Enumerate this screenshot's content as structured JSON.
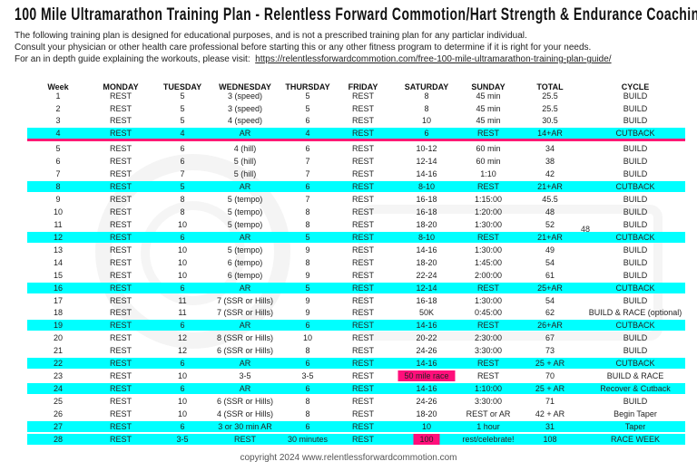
{
  "title": "100 Mile Ultramarathon Training Plan - Relentless Forward Commotion/Hart Strength & Endurance Coaching",
  "intro": {
    "line1": "The following training plan is designed for educational purposes, and is not a prescribed training plan for any particlar individual.",
    "line2": "Consult your physician or other health care professional before starting this or any other fitness program to determine if it is right for your needs.",
    "line3_prefix": "For an in depth guide explaining the workouts, please visit:",
    "link": "https://relentlessforwardcommotion.com/free-100-mile-ultramarathon-training-plan-guide/"
  },
  "watermarks": [
    "Heather Hart Coaching for Health & Life",
    "Relentless Forward Commotion"
  ],
  "colors": {
    "cutback_row": "#00ffff",
    "race_cell": "#ff0f7b",
    "divider": "#ff1a75"
  },
  "table": {
    "headers": [
      "Week",
      "MONDAY",
      "TUESDAY",
      "WEDNESDAY",
      "THURSDAY",
      "FRIDAY",
      "SATURDAY",
      "SUNDAY",
      "TOTAL",
      "CYCLE"
    ],
    "rows": [
      {
        "cells": [
          "1",
          "REST",
          "5",
          "3 (speed)",
          "5",
          "REST",
          "8",
          "45 min",
          "25.5",
          "BUILD"
        ]
      },
      {
        "cells": [
          "2",
          "REST",
          "5",
          "3 (speed)",
          "5",
          "REST",
          "8",
          "45 min",
          "25.5",
          "BUILD"
        ]
      },
      {
        "cells": [
          "3",
          "REST",
          "5",
          "4 (speed)",
          "6",
          "REST",
          "10",
          "45 min",
          "30.5",
          "BUILD"
        ]
      },
      {
        "cells": [
          "4",
          "REST",
          "4",
          "AR",
          "4",
          "REST",
          "6",
          "REST",
          "14+AR",
          "CUTBACK"
        ],
        "highlight": true
      },
      {
        "cells": [
          "5",
          "REST",
          "6",
          "4 (hill)",
          "6",
          "REST",
          "10-12",
          "60 min",
          "34",
          "BUILD"
        ]
      },
      {
        "cells": [
          "6",
          "REST",
          "6",
          "5 (hill)",
          "7",
          "REST",
          "12-14",
          "60 min",
          "38",
          "BUILD"
        ]
      },
      {
        "cells": [
          "7",
          "REST",
          "7",
          "5 (hill)",
          "7",
          "REST",
          "14-16",
          "1:10",
          "42",
          "BUILD"
        ]
      },
      {
        "cells": [
          "8",
          "REST",
          "5",
          "AR",
          "6",
          "REST",
          "8-10",
          "REST",
          "21+AR",
          "CUTBACK"
        ],
        "highlight": true
      },
      {
        "cells": [
          "9",
          "REST",
          "8",
          "5 (tempo)",
          "7",
          "REST",
          "16-18",
          "1:15:00",
          "45.5",
          "BUILD"
        ]
      },
      {
        "cells": [
          "10",
          "REST",
          "8",
          "5 (tempo)",
          "8",
          "REST",
          "16-18",
          "1:20:00",
          "48",
          "BUILD"
        ]
      },
      {
        "cells": [
          "11",
          "REST",
          "10",
          "5 (tempo)",
          "8",
          "REST",
          "18-20",
          "1:30:00",
          "52",
          "BUILD"
        ]
      },
      {
        "cells": [
          "12",
          "REST",
          "6",
          "AR",
          "5",
          "REST",
          "8-10",
          "REST",
          "21+AR",
          "CUTBACK"
        ],
        "highlight": true
      },
      {
        "cells": [
          "13",
          "REST",
          "10",
          "5 (tempo)",
          "9",
          "REST",
          "14-16",
          "1:30:00",
          "49",
          "BUILD"
        ]
      },
      {
        "cells": [
          "14",
          "REST",
          "10",
          "6 (tempo)",
          "8",
          "REST",
          "18-20",
          "1:45:00",
          "54",
          "BUILD"
        ]
      },
      {
        "cells": [
          "15",
          "REST",
          "10",
          "6 (tempo)",
          "9",
          "REST",
          "22-24",
          "2:00:00",
          "61",
          "BUILD"
        ]
      },
      {
        "cells": [
          "16",
          "REST",
          "6",
          "AR",
          "5",
          "REST",
          "12-14",
          "REST",
          "25+AR",
          "CUTBACK"
        ],
        "highlight": true
      },
      {
        "cells": [
          "17",
          "REST",
          "11",
          "7 (SSR or Hills)",
          "9",
          "REST",
          "16-18",
          "1:30:00",
          "54",
          "BUILD"
        ]
      },
      {
        "cells": [
          "18",
          "REST",
          "11",
          "7 (SSR or Hills)",
          "9",
          "REST",
          "50K",
          "0:45:00",
          "62",
          "BUILD & RACE (optional)"
        ]
      },
      {
        "cells": [
          "19",
          "REST",
          "6",
          "AR",
          "6",
          "REST",
          "14-16",
          "REST",
          "26+AR",
          "CUTBACK"
        ],
        "highlight": true
      },
      {
        "cells": [
          "20",
          "REST",
          "12",
          "8 (SSR or Hills)",
          "10",
          "REST",
          "20-22",
          "2:30:00",
          "67",
          "BUILD"
        ]
      },
      {
        "cells": [
          "21",
          "REST",
          "12",
          "6 (SSR or Hills)",
          "8",
          "REST",
          "24-26",
          "3:30:00",
          "73",
          "BUILD"
        ]
      },
      {
        "cells": [
          "22",
          "REST",
          "6",
          "AR",
          "6",
          "REST",
          "14-16",
          "REST",
          "25 + AR",
          "CUTBACK"
        ],
        "highlight": true
      },
      {
        "cells": [
          "23",
          "REST",
          "10",
          "3-5",
          "3-5",
          "REST",
          "50 mile race",
          "REST",
          "70",
          "BUILD & RACE"
        ],
        "race_col": 6
      },
      {
        "cells": [
          "24",
          "REST",
          "6",
          "AR",
          "6",
          "REST",
          "14-16",
          "1:10:00",
          "25 + AR",
          "Recover & Cutback"
        ],
        "highlight": true
      },
      {
        "cells": [
          "25",
          "REST",
          "10",
          "6 (SSR or Hills)",
          "8",
          "REST",
          "24-26",
          "3:30:00",
          "71",
          "BUILD"
        ]
      },
      {
        "cells": [
          "26",
          "REST",
          "10",
          "4 (SSR or Hills)",
          "8",
          "REST",
          "18-20",
          "REST or AR",
          "42 + AR",
          "Begin Taper"
        ]
      },
      {
        "cells": [
          "27",
          "REST",
          "6",
          "3 or 30 min AR",
          "6",
          "REST",
          "10",
          "1 hour",
          "31",
          "Taper"
        ],
        "highlight": true
      },
      {
        "cells": [
          "28",
          "REST",
          "3-5",
          "REST",
          "30 minutes",
          "REST",
          "100",
          "rest/celebrate!",
          "108",
          "RACE WEEK"
        ],
        "highlight": true,
        "race_col": 6
      }
    ],
    "stray_note": "48"
  },
  "footer": "copyright 2024 www.relentlessforwardcommotion.com"
}
